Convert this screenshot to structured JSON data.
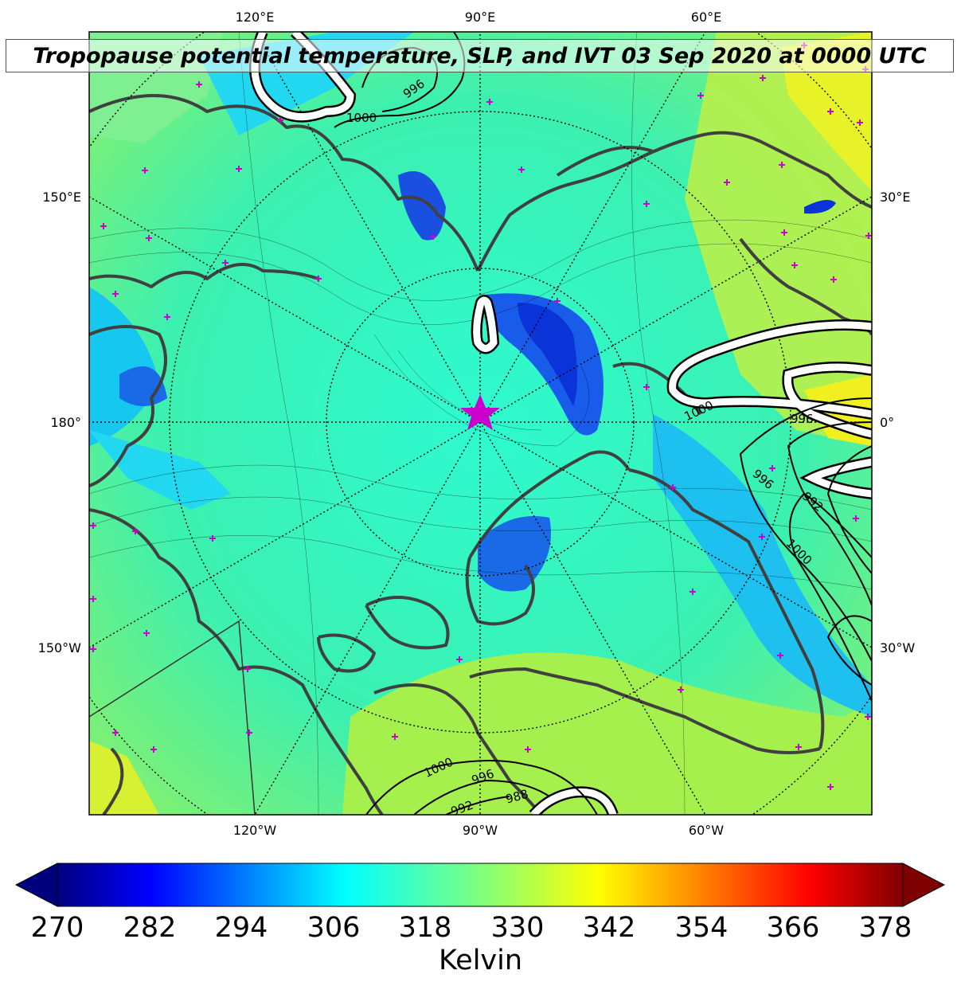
{
  "title": "Tropopause potential temperature, SLP, and IVT 03 Sep 2020 at 0000 UTC",
  "longitude_labels": {
    "top": [
      "120°E",
      "90°E",
      "60°E"
    ],
    "bottom": [
      "120°W",
      "90°W",
      "60°W"
    ],
    "left": [
      "150°E",
      "180°",
      "150°W"
    ],
    "right": [
      "30°E",
      "0°",
      "30°W"
    ]
  },
  "slp_contour_labels": [
    "996",
    "1000",
    "1000",
    "996",
    "996",
    "992",
    "1000",
    "1000",
    "996",
    "992",
    "988"
  ],
  "colorbar": {
    "ticks": [
      "270",
      "282",
      "294",
      "306",
      "318",
      "330",
      "342",
      "354",
      "366",
      "378"
    ],
    "unit": "Kelvin",
    "colormap": [
      "#00007f",
      "#0000ff",
      "#007fff",
      "#00ffff",
      "#7fff7f",
      "#ffff00",
      "#ff7f00",
      "#ff0000",
      "#7f0000"
    ]
  },
  "colors": {
    "coastline": "#404040",
    "marker": "#cc00cc",
    "ivt_contour": "#ffffff",
    "slp_contour": "#000000"
  },
  "markers": {
    "center": "star-icon",
    "points": "plus-icon"
  }
}
